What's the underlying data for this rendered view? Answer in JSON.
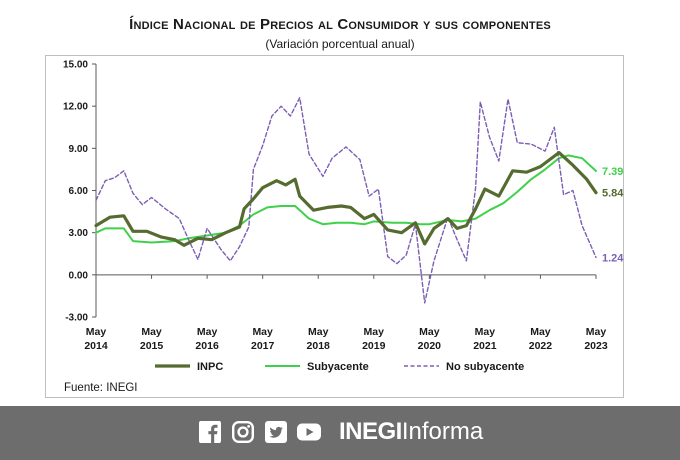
{
  "title": "Índice Nacional de Precios al Consumidor y sus componentes",
  "subtitle": "(Variación porcentual anual)",
  "source": "Fuente: INEGI",
  "footer": {
    "brand_bold": "INEGI",
    "brand_light": "Informa",
    "icons": [
      "facebook-icon",
      "instagram-icon",
      "twitter-icon",
      "youtube-icon"
    ]
  },
  "colors": {
    "inpc": "#556b2f",
    "subyacente": "#3fd14a",
    "no_subyacente": "#7b5fb3",
    "footer_bg": "#6d6d6d"
  },
  "chart_data": {
    "type": "line",
    "title": "Índice Nacional de Precios al Consumidor y sus componentes",
    "subtitle": "(Variación porcentual anual)",
    "xlabel": "",
    "ylabel": "",
    "ylim": [
      -3,
      15
    ],
    "yticks": [
      "15.00",
      "12.00",
      "9.00",
      "6.00",
      "3.00",
      "0.00",
      "-3.00"
    ],
    "ytick_values": [
      15,
      12,
      9,
      6,
      3,
      0,
      -3
    ],
    "xlim": [
      "2014-05",
      "2023-05"
    ],
    "xticks": [
      {
        "date": "2014-05",
        "top": "May",
        "bottom": "2014"
      },
      {
        "date": "2015-05",
        "top": "May",
        "bottom": "2015"
      },
      {
        "date": "2016-05",
        "top": "May",
        "bottom": "2016"
      },
      {
        "date": "2017-05",
        "top": "May",
        "bottom": "2017"
      },
      {
        "date": "2018-05",
        "top": "May",
        "bottom": "2018"
      },
      {
        "date": "2019-05",
        "top": "May",
        "bottom": "2019"
      },
      {
        "date": "2020-05",
        "top": "May",
        "bottom": "2020"
      },
      {
        "date": "2021-05",
        "top": "May",
        "bottom": "2021"
      },
      {
        "date": "2022-05",
        "top": "May",
        "bottom": "2022"
      },
      {
        "date": "2023-05",
        "top": "May",
        "bottom": "2023"
      }
    ],
    "grid": false,
    "legend": {
      "position": "bottom",
      "entries": [
        "INPC",
        "Subyacente",
        "No subyacente"
      ]
    },
    "end_labels": [
      {
        "series": "Subyacente",
        "text": "7.39",
        "value": 7.39
      },
      {
        "series": "INPC",
        "text": "5.84",
        "value": 5.84
      },
      {
        "series": "No subyacente",
        "text": "1.24",
        "value": 1.24
      }
    ],
    "series": [
      {
        "name": "INPC",
        "style": "solid-thick",
        "points": [
          [
            "2014-05",
            3.5
          ],
          [
            "2014-08",
            4.1
          ],
          [
            "2014-11",
            4.2
          ],
          [
            "2015-01",
            3.1
          ],
          [
            "2015-04",
            3.1
          ],
          [
            "2015-07",
            2.7
          ],
          [
            "2015-10",
            2.5
          ],
          [
            "2015-12",
            2.1
          ],
          [
            "2016-03",
            2.6
          ],
          [
            "2016-06",
            2.5
          ],
          [
            "2016-09",
            3.0
          ],
          [
            "2016-12",
            3.4
          ],
          [
            "2017-01",
            4.7
          ],
          [
            "2017-03",
            5.4
          ],
          [
            "2017-05",
            6.2
          ],
          [
            "2017-08",
            6.7
          ],
          [
            "2017-10",
            6.4
          ],
          [
            "2017-12",
            6.8
          ],
          [
            "2018-01",
            5.6
          ],
          [
            "2018-04",
            4.6
          ],
          [
            "2018-07",
            4.8
          ],
          [
            "2018-10",
            4.9
          ],
          [
            "2018-12",
            4.8
          ],
          [
            "2019-03",
            4.0
          ],
          [
            "2019-05",
            4.3
          ],
          [
            "2019-08",
            3.2
          ],
          [
            "2019-11",
            3.0
          ],
          [
            "2020-02",
            3.7
          ],
          [
            "2020-04",
            2.2
          ],
          [
            "2020-06",
            3.3
          ],
          [
            "2020-09",
            4.0
          ],
          [
            "2020-11",
            3.3
          ],
          [
            "2021-01",
            3.5
          ],
          [
            "2021-03",
            4.7
          ],
          [
            "2021-05",
            6.1
          ],
          [
            "2021-08",
            5.6
          ],
          [
            "2021-11",
            7.4
          ],
          [
            "2022-02",
            7.3
          ],
          [
            "2022-05",
            7.7
          ],
          [
            "2022-07",
            8.2
          ],
          [
            "2022-09",
            8.7
          ],
          [
            "2022-12",
            7.8
          ],
          [
            "2023-03",
            6.8
          ],
          [
            "2023-05",
            5.84
          ]
        ]
      },
      {
        "name": "Subyacente",
        "style": "solid",
        "points": [
          [
            "2014-05",
            3.0
          ],
          [
            "2014-07",
            3.3
          ],
          [
            "2014-11",
            3.3
          ],
          [
            "2015-01",
            2.4
          ],
          [
            "2015-05",
            2.3
          ],
          [
            "2015-10",
            2.4
          ],
          [
            "2016-01",
            2.6
          ],
          [
            "2016-05",
            2.8
          ],
          [
            "2016-09",
            3.0
          ],
          [
            "2016-12",
            3.5
          ],
          [
            "2017-03",
            4.3
          ],
          [
            "2017-06",
            4.8
          ],
          [
            "2017-09",
            4.9
          ],
          [
            "2017-12",
            4.9
          ],
          [
            "2018-03",
            4.0
          ],
          [
            "2018-06",
            3.6
          ],
          [
            "2018-09",
            3.7
          ],
          [
            "2018-12",
            3.7
          ],
          [
            "2019-03",
            3.6
          ],
          [
            "2019-05",
            3.8
          ],
          [
            "2019-09",
            3.7
          ],
          [
            "2019-12",
            3.7
          ],
          [
            "2020-03",
            3.6
          ],
          [
            "2020-05",
            3.6
          ],
          [
            "2020-09",
            3.9
          ],
          [
            "2020-12",
            3.8
          ],
          [
            "2021-03",
            4.0
          ],
          [
            "2021-06",
            4.6
          ],
          [
            "2021-09",
            5.1
          ],
          [
            "2021-12",
            5.9
          ],
          [
            "2022-03",
            6.8
          ],
          [
            "2022-06",
            7.5
          ],
          [
            "2022-09",
            8.3
          ],
          [
            "2022-11",
            8.5
          ],
          [
            "2023-02",
            8.3
          ],
          [
            "2023-05",
            7.39
          ]
        ]
      },
      {
        "name": "No subyacente",
        "style": "dashed",
        "points": [
          [
            "2014-05",
            5.3
          ],
          [
            "2014-07",
            6.7
          ],
          [
            "2014-09",
            6.9
          ],
          [
            "2014-11",
            7.4
          ],
          [
            "2015-01",
            5.8
          ],
          [
            "2015-03",
            5.0
          ],
          [
            "2015-05",
            5.5
          ],
          [
            "2015-08",
            4.7
          ],
          [
            "2015-11",
            4.0
          ],
          [
            "2016-01",
            2.5
          ],
          [
            "2016-03",
            1.1
          ],
          [
            "2016-05",
            3.3
          ],
          [
            "2016-08",
            1.8
          ],
          [
            "2016-10",
            1.0
          ],
          [
            "2016-12",
            2.0
          ],
          [
            "2017-02",
            3.4
          ],
          [
            "2017-03",
            7.5
          ],
          [
            "2017-05",
            9.2
          ],
          [
            "2017-07",
            11.3
          ],
          [
            "2017-09",
            12.0
          ],
          [
            "2017-11",
            11.3
          ],
          [
            "2018-01",
            12.6
          ],
          [
            "2018-03",
            8.6
          ],
          [
            "2018-06",
            7.0
          ],
          [
            "2018-08",
            8.3
          ],
          [
            "2018-11",
            9.1
          ],
          [
            "2019-02",
            8.2
          ],
          [
            "2019-04",
            5.6
          ],
          [
            "2019-06",
            6.1
          ],
          [
            "2019-08",
            1.3
          ],
          [
            "2019-10",
            0.8
          ],
          [
            "2019-12",
            1.4
          ],
          [
            "2020-02",
            3.6
          ],
          [
            "2020-04",
            -2.0
          ],
          [
            "2020-06",
            1.0
          ],
          [
            "2020-09",
            4.1
          ],
          [
            "2020-11",
            2.5
          ],
          [
            "2021-01",
            1.0
          ],
          [
            "2021-03",
            6.2
          ],
          [
            "2021-04",
            12.3
          ],
          [
            "2021-06",
            9.8
          ],
          [
            "2021-08",
            8.1
          ],
          [
            "2021-10",
            12.5
          ],
          [
            "2021-12",
            9.4
          ],
          [
            "2022-03",
            9.3
          ],
          [
            "2022-06",
            8.8
          ],
          [
            "2022-08",
            10.5
          ],
          [
            "2022-10",
            5.7
          ],
          [
            "2022-12",
            6.0
          ],
          [
            "2023-02",
            3.5
          ],
          [
            "2023-05",
            1.24
          ]
        ]
      }
    ]
  }
}
